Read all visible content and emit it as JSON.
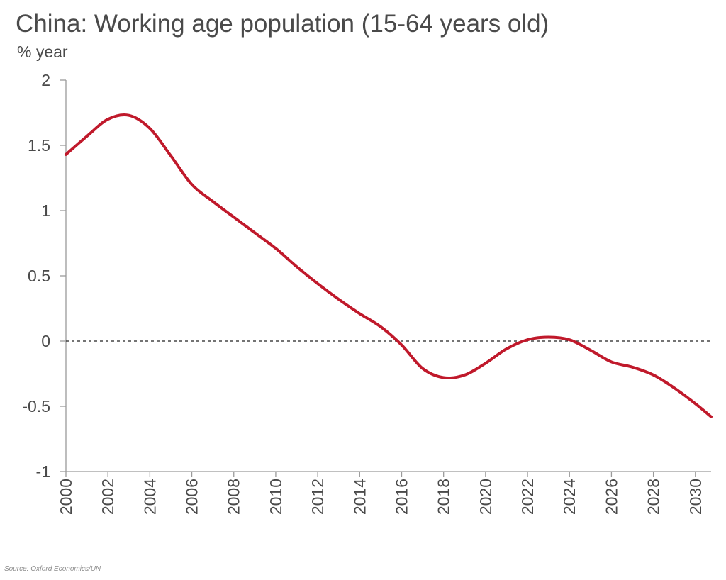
{
  "chart_data": {
    "type": "line",
    "title": "China: Working age population (15-64 years old)",
    "ylabel": "% year",
    "xlabel": "",
    "source": "Source: Oxford Economics/UN",
    "ylim": [
      -1,
      2
    ],
    "xlim": [
      2000,
      2030.75
    ],
    "yticks": [
      2,
      1.5,
      1,
      0.5,
      0,
      -0.5,
      -1
    ],
    "ytick_labels": [
      "2",
      "1.5",
      "1",
      "0.5",
      "0",
      "-0.5",
      "-1"
    ],
    "xticks": [
      2000,
      2002,
      2004,
      2006,
      2008,
      2010,
      2012,
      2014,
      2016,
      2018,
      2020,
      2022,
      2024,
      2026,
      2028,
      2030
    ],
    "xtick_labels": [
      "2000",
      "2002",
      "2004",
      "2006",
      "2008",
      "2010",
      "2012",
      "2014",
      "2016",
      "2018",
      "2020",
      "2022",
      "2024",
      "2026",
      "2028",
      "2030"
    ],
    "reference_line": {
      "y": 0,
      "style": "dashed"
    },
    "grid": false,
    "colors": {
      "line": "#c0192b",
      "axis": "#9a9a9a",
      "text": "#4a4a4a"
    },
    "series": [
      {
        "x": [
          2000,
          2001,
          2002,
          2003,
          2004,
          2005,
          2006,
          2007,
          2008,
          2009,
          2010,
          2011,
          2012,
          2013,
          2014,
          2015,
          2016,
          2017,
          2018,
          2019,
          2020,
          2021,
          2022,
          2023,
          2024,
          2025,
          2026,
          2027,
          2028,
          2029,
          2030,
          2030.75
        ],
        "values": [
          1.43,
          1.57,
          1.7,
          1.73,
          1.63,
          1.42,
          1.2,
          1.07,
          0.95,
          0.83,
          0.71,
          0.57,
          0.44,
          0.32,
          0.21,
          0.11,
          -0.03,
          -0.21,
          -0.28,
          -0.26,
          -0.17,
          -0.06,
          0.01,
          0.03,
          0.01,
          -0.07,
          -0.16,
          -0.2,
          -0.26,
          -0.36,
          -0.48,
          -0.58
        ]
      }
    ]
  }
}
